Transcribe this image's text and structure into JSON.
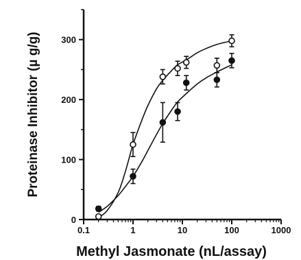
{
  "chart_data": {
    "type": "scatter",
    "xscale": "log",
    "xlim": [
      0.1,
      1000
    ],
    "ylim": [
      0,
      350
    ],
    "xlabel": "Methyl Jasmonate (nL/assay)",
    "ylabel": "Proteinase Inhibitor (µ g/g)",
    "x_ticks": [
      {
        "value": 0.1,
        "label": "0.1"
      },
      {
        "value": 1,
        "label": "1"
      },
      {
        "value": 10,
        "label": "10"
      },
      {
        "value": 100,
        "label": "100"
      },
      {
        "value": 1000,
        "label": "1000"
      }
    ],
    "y_ticks": [
      {
        "value": 0,
        "label": "0"
      },
      {
        "value": 100,
        "label": "100"
      },
      {
        "value": 200,
        "label": "200"
      },
      {
        "value": 300,
        "label": "300"
      }
    ],
    "grid": false,
    "series": [
      {
        "marker": "open-circle",
        "points": [
          {
            "x": 0.2,
            "y": 5,
            "err": 3
          },
          {
            "x": 1,
            "y": 125,
            "err": 20
          },
          {
            "x": 4,
            "y": 238,
            "err": 12
          },
          {
            "x": 8,
            "y": 252,
            "err": 12
          },
          {
            "x": 12,
            "y": 262,
            "err": 10
          },
          {
            "x": 50,
            "y": 257,
            "err": 12
          },
          {
            "x": 100,
            "y": 298,
            "err": 10
          }
        ],
        "fit": [
          [
            0.2,
            3
          ],
          [
            0.3,
            15
          ],
          [
            0.5,
            45
          ],
          [
            0.7,
            80
          ],
          [
            1,
            125
          ],
          [
            1.5,
            165
          ],
          [
            2,
            190
          ],
          [
            3,
            218
          ],
          [
            4,
            232
          ],
          [
            6,
            248
          ],
          [
            8,
            258
          ],
          [
            12,
            266
          ],
          [
            20,
            278
          ],
          [
            30,
            285
          ],
          [
            50,
            292
          ],
          [
            100,
            298
          ]
        ]
      },
      {
        "marker": "filled-circle",
        "points": [
          {
            "x": 0.2,
            "y": 18,
            "err": 4
          },
          {
            "x": 1,
            "y": 72,
            "err": 12
          },
          {
            "x": 4,
            "y": 162,
            "err": 33
          },
          {
            "x": 8,
            "y": 180,
            "err": 15
          },
          {
            "x": 12,
            "y": 228,
            "err": 12
          },
          {
            "x": 50,
            "y": 233,
            "err": 12
          },
          {
            "x": 100,
            "y": 265,
            "err": 12
          }
        ],
        "fit": [
          [
            0.2,
            12
          ],
          [
            0.3,
            22
          ],
          [
            0.5,
            40
          ],
          [
            0.7,
            55
          ],
          [
            1,
            72
          ],
          [
            1.5,
            96
          ],
          [
            2,
            115
          ],
          [
            3,
            142
          ],
          [
            4,
            160
          ],
          [
            6,
            182
          ],
          [
            8,
            196
          ],
          [
            12,
            210
          ],
          [
            20,
            226
          ],
          [
            30,
            236
          ],
          [
            50,
            246
          ],
          [
            100,
            258
          ]
        ]
      }
    ]
  }
}
